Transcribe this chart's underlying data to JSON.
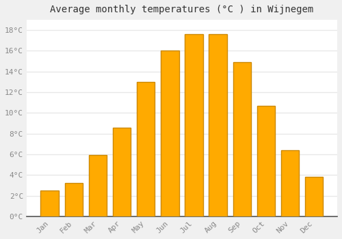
{
  "title": "Average monthly temperatures (°C ) in Wijnegem",
  "months": [
    "Jan",
    "Feb",
    "Mar",
    "Apr",
    "May",
    "Jun",
    "Jul",
    "Aug",
    "Sep",
    "Oct",
    "Nov",
    "Dec"
  ],
  "values": [
    2.5,
    3.2,
    5.9,
    8.6,
    13.0,
    16.0,
    17.6,
    17.6,
    14.9,
    10.7,
    6.4,
    3.8
  ],
  "bar_color": "#FFAA00",
  "bar_edge_color": "#CC8800",
  "ylim": [
    0,
    19
  ],
  "yticks": [
    0,
    2,
    4,
    6,
    8,
    10,
    12,
    14,
    16,
    18
  ],
  "ytick_labels": [
    "0°C",
    "2°C",
    "4°C",
    "6°C",
    "8°C",
    "10°C",
    "12°C",
    "14°C",
    "16°C",
    "18°C"
  ],
  "background_color": "#f0f0f0",
  "plot_background_color": "#ffffff",
  "grid_color": "#e8e8e8",
  "bar_edge_width": 1.0,
  "title_fontsize": 10,
  "tick_fontsize": 8,
  "tick_color": "#888888",
  "axis_color": "#555555",
  "bar_width": 0.75
}
